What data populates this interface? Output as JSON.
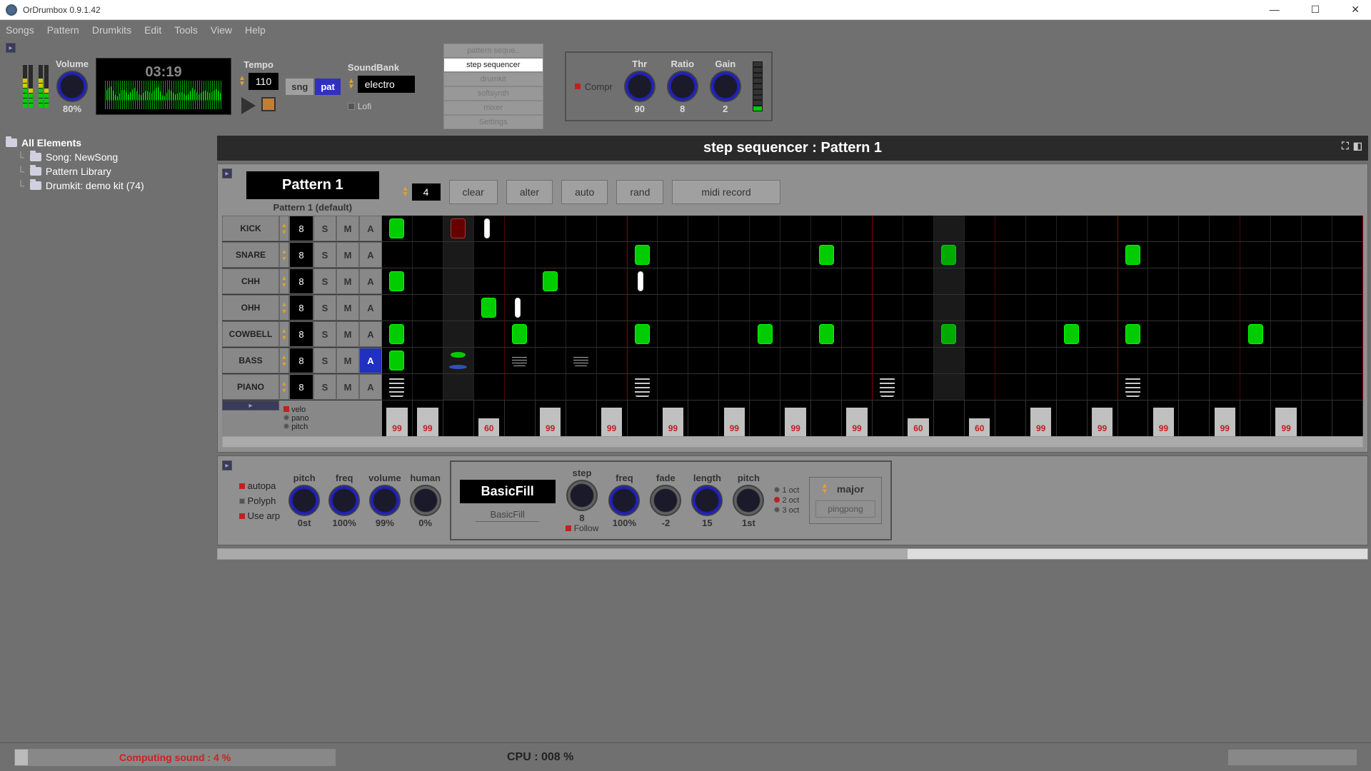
{
  "window": {
    "title": "OrDrumbox 0.9.1.42"
  },
  "menu": [
    "Songs",
    "Pattern",
    "Drumkits",
    "Edit",
    "Tools",
    "View",
    "Help"
  ],
  "volume": {
    "label": "Volume",
    "value": "80%"
  },
  "time": "03:19",
  "tempo": {
    "label": "Tempo",
    "value": "110"
  },
  "mode": {
    "sng": "sng",
    "pat": "pat"
  },
  "soundbank": {
    "label": "SoundBank",
    "value": "electro",
    "lofi": "Lofi"
  },
  "tabs": [
    "pattern seque..",
    "step sequencer",
    "drumkit",
    "softsynth",
    "mixer",
    "Settings"
  ],
  "compressor": {
    "label": "Compr",
    "thr": {
      "label": "Thr",
      "value": "90"
    },
    "ratio": {
      "label": "Ratio",
      "value": "8"
    },
    "gain": {
      "label": "Gain",
      "value": "2"
    }
  },
  "tree": {
    "root": "All Elements",
    "items": [
      "Song: NewSong",
      "Pattern Library",
      "Drumkit: demo kit (74)"
    ]
  },
  "seq": {
    "title": "step sequencer : Pattern 1",
    "pattern_name": "Pattern 1",
    "pattern_sub": "Pattern 1 (default)",
    "beats": "4",
    "actions": {
      "clear": "clear",
      "alter": "alter",
      "auto": "auto",
      "rand": "rand",
      "midi": "midi record"
    },
    "tracks": [
      {
        "name": "KICK",
        "val": "8"
      },
      {
        "name": "SNARE",
        "val": "8"
      },
      {
        "name": "CHH",
        "val": "8"
      },
      {
        "name": "OHH",
        "val": "8"
      },
      {
        "name": "COWBELL",
        "val": "8"
      },
      {
        "name": "BASS",
        "val": "8"
      },
      {
        "name": "PIANO",
        "val": "8"
      }
    ],
    "sma": {
      "s": "S",
      "m": "M",
      "a": "A"
    },
    "velo_opts": [
      "velo",
      "pano",
      "pitch"
    ],
    "velo_vals": [
      "99",
      "99",
      "",
      "60",
      "",
      "99",
      "",
      "99",
      "",
      "99",
      "",
      "99",
      "",
      "99",
      "",
      "99",
      "",
      "60",
      "",
      "60",
      "",
      "99",
      "",
      "99",
      "",
      "99",
      "",
      "99",
      "",
      "99",
      "",
      ""
    ]
  },
  "fx": {
    "checks": [
      "autopa",
      "Polyph",
      "Use arp"
    ],
    "knobs": {
      "pitch": {
        "label": "pitch",
        "value": "0st"
      },
      "freq": {
        "label": "freq",
        "value": "100%"
      },
      "volume": {
        "label": "volume",
        "value": "99%"
      },
      "human": {
        "label": "human",
        "value": "0%"
      }
    },
    "fill": {
      "name": "BasicFill",
      "sub": "BasicFill"
    },
    "fill_knobs": {
      "step": {
        "label": "step",
        "value": "8"
      },
      "freq": {
        "label": "freq",
        "value": "100%"
      },
      "fade": {
        "label": "fade",
        "value": "-2"
      },
      "length": {
        "label": "length",
        "value": "15"
      },
      "pitch": {
        "label": "pitch",
        "value": "1st"
      }
    },
    "follow": "Follow",
    "octs": [
      "1 oct",
      "2 oct",
      "3 oct"
    ],
    "scale": "major",
    "pingpong": "pingpong"
  },
  "status": {
    "computing": "Computing sound : 4 %",
    "cpu": "CPU : 008 %"
  },
  "colors": {
    "bg_main": "#707070",
    "bg_panel": "#909090",
    "bg_dark": "#000000",
    "accent_blue": "#2030c0",
    "accent_green": "#00cc00",
    "accent_orange": "#e0a030",
    "text_light": "#dddddd"
  }
}
